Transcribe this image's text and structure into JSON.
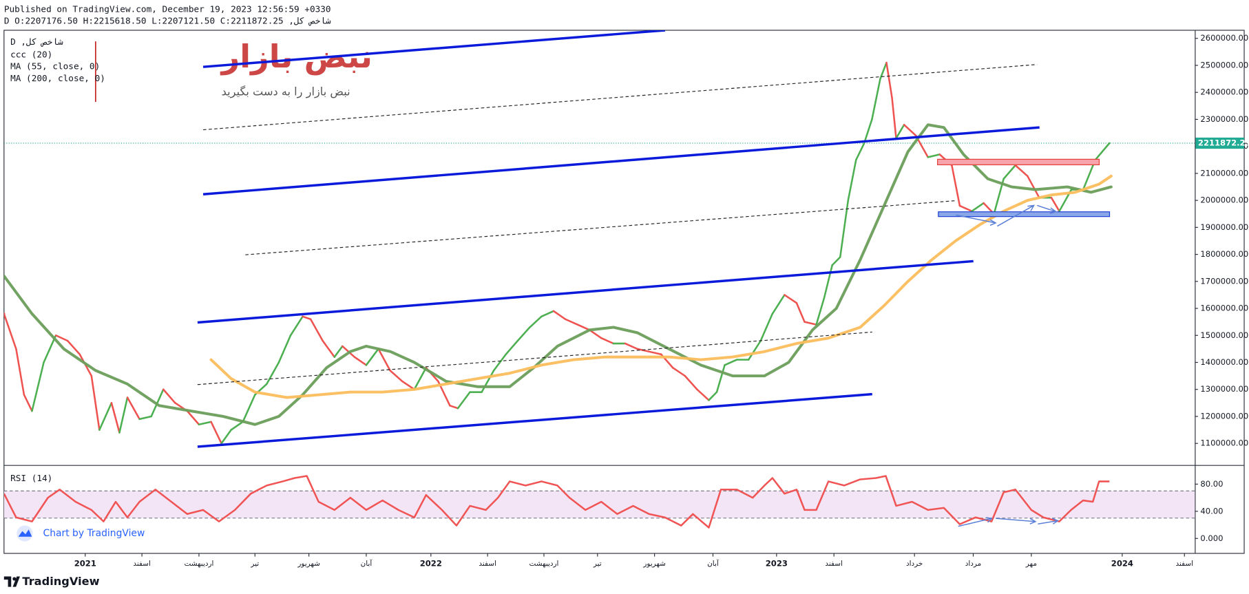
{
  "header": {
    "published": "Published on TradingView.com, December 19, 2023 12:56:59 +0330",
    "symbol_line": "شاخص کل, D O:2207176.50 H:2215618.50 L:2207121.50 C:2211872.25"
  },
  "watermark": {
    "logo": "نبض بازار",
    "tagline": "نبض بازار را به دست بگیرید"
  },
  "footer": {
    "attribution": "Chart by TradingView",
    "brand": "TradingView"
  },
  "chart_data": [
    {
      "type": "line",
      "legend": [
        "شاخص کل, D",
        "ccc (20)"
      ],
      "xlim": [
        2020.765,
        2024.21
      ],
      "ylim": [
        1020000,
        2630000
      ],
      "yticks": [
        {
          "value": 1100000,
          "label": "1100000.00"
        },
        {
          "value": 1200000,
          "label": "1200000.00"
        },
        {
          "value": 1300000,
          "label": "1300000.00"
        },
        {
          "value": 1400000,
          "label": "1400000.00"
        },
        {
          "value": 1500000,
          "label": "1500000.00"
        },
        {
          "value": 1600000,
          "label": "1600000.00"
        },
        {
          "value": 1700000,
          "label": "1700000.00"
        },
        {
          "value": 1800000,
          "label": "1800000.00"
        },
        {
          "value": 1900000,
          "label": "1900000.00"
        },
        {
          "value": 2000000,
          "label": "2000000.00"
        },
        {
          "value": 2100000,
          "label": "2100000.00"
        },
        {
          "value": 2200000,
          "label": "2200000.00"
        },
        {
          "value": 2300000,
          "label": "2300000.00"
        },
        {
          "value": 2400000,
          "label": "2400000.00"
        },
        {
          "value": 2500000,
          "label": "2500000.00"
        },
        {
          "value": 2600000,
          "label": "2600000.00"
        }
      ],
      "last_value": 2211872.25,
      "last_color": "#22ab94",
      "series": [
        {
          "color_up": "#4caf50",
          "color_down": "#ef5350",
          "x": [
            2020.765,
            2020.8,
            2020.823,
            2020.846,
            2020.88,
            2020.915,
            2020.949,
            2020.984,
            2021.018,
            2021.041,
            2021.076,
            2021.099,
            2021.122,
            2021.157,
            2021.191,
            2021.226,
            2021.26,
            2021.295,
            2021.329,
            2021.364,
            2021.394,
            2021.422,
            2021.456,
            2021.491,
            2021.525,
            2021.56,
            2021.594,
            2021.629,
            2021.652,
            2021.687,
            2021.721,
            2021.744,
            2021.779,
            2021.813,
            2021.848,
            2021.882,
            2021.917,
            2021.952,
            2021.986,
            2022.021,
            2022.055,
            2022.078,
            2022.113,
            2022.147,
            2022.182,
            2022.217,
            2022.251,
            2022.286,
            2022.32,
            2022.355,
            2022.389,
            2022.424,
            2022.459,
            2022.493,
            2022.528,
            2022.562,
            2022.597,
            2022.631,
            2022.666,
            2022.7,
            2022.735,
            2022.77,
            2022.804,
            2022.827,
            2022.85,
            2022.885,
            2022.919,
            2022.954,
            2022.988,
            2023.023,
            2023.058,
            2023.081,
            2023.115,
            2023.138,
            2023.161,
            2023.184,
            2023.207,
            2023.23,
            2023.253,
            2023.276,
            2023.3,
            2023.318,
            2023.334,
            2023.346,
            2023.369,
            2023.403,
            2023.438,
            2023.472,
            2023.507,
            2023.53,
            2023.565,
            2023.599,
            2023.629,
            2023.657,
            2023.691,
            2023.726,
            2023.76,
            2023.795,
            2023.818,
            2023.853,
            2023.887,
            2023.922,
            2023.963
          ],
          "values": [
            1580000,
            1450000,
            1280000,
            1220000,
            1400000,
            1500000,
            1480000,
            1430000,
            1350000,
            1150000,
            1250000,
            1140000,
            1270000,
            1190000,
            1200000,
            1300000,
            1250000,
            1220000,
            1170000,
            1180000,
            1100000,
            1150000,
            1180000,
            1280000,
            1320000,
            1400000,
            1500000,
            1570000,
            1560000,
            1480000,
            1420000,
            1460000,
            1420000,
            1390000,
            1450000,
            1370000,
            1330000,
            1300000,
            1380000,
            1330000,
            1240000,
            1230000,
            1290000,
            1290000,
            1370000,
            1430000,
            1480000,
            1530000,
            1570000,
            1590000,
            1560000,
            1540000,
            1520000,
            1490000,
            1470000,
            1470000,
            1450000,
            1440000,
            1430000,
            1380000,
            1350000,
            1300000,
            1260000,
            1290000,
            1390000,
            1410000,
            1410000,
            1480000,
            1580000,
            1650000,
            1620000,
            1550000,
            1540000,
            1640000,
            1760000,
            1790000,
            2000000,
            2150000,
            2210000,
            2300000,
            2450000,
            2510000,
            2380000,
            2230000,
            2280000,
            2240000,
            2160000,
            2170000,
            2130000,
            1980000,
            1960000,
            1990000,
            1950000,
            2080000,
            2130000,
            2090000,
            2010000,
            2010000,
            1960000,
            2040000,
            2040000,
            2150000,
            2211872.25
          ]
        },
        {
          "name": "MA (55, close, 0)",
          "color": "#6b9e5b",
          "x": [
            2020.765,
            2020.846,
            2020.938,
            2021.03,
            2021.122,
            2021.214,
            2021.306,
            2021.399,
            2021.491,
            2021.56,
            2021.629,
            2021.698,
            2021.767,
            2021.813,
            2021.883,
            2021.952,
            2022.044,
            2022.136,
            2022.228,
            2022.297,
            2022.366,
            2022.459,
            2022.528,
            2022.597,
            2022.689,
            2022.781,
            2022.873,
            2022.965,
            2023.035,
            2023.104,
            2023.173,
            2023.242,
            2023.311,
            2023.38,
            2023.438,
            2023.484,
            2023.541,
            2023.611,
            2023.68,
            2023.749,
            2023.841,
            2023.91,
            2023.968
          ],
          "values": [
            1720000,
            1580000,
            1450000,
            1370000,
            1320000,
            1240000,
            1220000,
            1200000,
            1170000,
            1200000,
            1280000,
            1380000,
            1440000,
            1460000,
            1440000,
            1400000,
            1330000,
            1310000,
            1310000,
            1380000,
            1460000,
            1520000,
            1530000,
            1510000,
            1450000,
            1390000,
            1350000,
            1350000,
            1400000,
            1520000,
            1600000,
            1780000,
            1980000,
            2180000,
            2280000,
            2270000,
            2170000,
            2080000,
            2050000,
            2040000,
            2050000,
            2030000,
            2050000
          ]
        },
        {
          "name": "MA (200, close, 0)",
          "color": "#fbbd5c",
          "x": [
            2021.364,
            2021.422,
            2021.491,
            2021.583,
            2021.675,
            2021.767,
            2021.86,
            2021.952,
            2022.044,
            2022.136,
            2022.228,
            2022.32,
            2022.413,
            2022.505,
            2022.597,
            2022.689,
            2022.781,
            2022.873,
            2022.965,
            2023.058,
            2023.15,
            2023.242,
            2023.311,
            2023.38,
            2023.449,
            2023.518,
            2023.588,
            2023.657,
            2023.726,
            2023.795,
            2023.864,
            2023.933,
            2023.968
          ],
          "values": [
            1410000,
            1340000,
            1290000,
            1270000,
            1280000,
            1290000,
            1290000,
            1300000,
            1320000,
            1340000,
            1360000,
            1390000,
            1410000,
            1420000,
            1420000,
            1420000,
            1410000,
            1420000,
            1440000,
            1470000,
            1490000,
            1530000,
            1610000,
            1700000,
            1780000,
            1850000,
            1910000,
            1960000,
            2000000,
            2020000,
            2030000,
            2060000,
            2090000
          ]
        }
      ]
    },
    {
      "type": "line",
      "title": "RSI (14)",
      "color": "#f05454",
      "band": [
        30,
        70
      ],
      "band_color": "#f3e5f5",
      "xlim": [
        2020.765,
        2024.21
      ],
      "ylim": [
        -22,
        107
      ],
      "yticks": [
        {
          "value": 0,
          "label": "0.000"
        },
        {
          "value": 40,
          "label": "40.00"
        },
        {
          "value": 80,
          "label": "80.00"
        }
      ],
      "xticks": [
        2021,
        {
          "value": 2021.164,
          "label": "اسفند"
        },
        {
          "value": 2021.329,
          "label": "اردیبهشت"
        },
        {
          "value": 2021.491,
          "label": "تیر"
        },
        {
          "value": 2021.647,
          "label": "شهریور"
        },
        {
          "value": 2021.813,
          "label": "آبان"
        },
        2022,
        {
          "value": 2022.164,
          "label": "اسفند"
        },
        {
          "value": 2022.327,
          "label": "اردیبهشت"
        },
        {
          "value": 2022.482,
          "label": "تیر"
        },
        {
          "value": 2022.647,
          "label": "شهریور"
        },
        {
          "value": 2022.816,
          "label": "آبان"
        },
        2023,
        {
          "value": 2023.166,
          "label": "اسفند"
        },
        {
          "value": 2023.399,
          "label": "خرداد"
        },
        {
          "value": 2023.569,
          "label": "مرداد"
        },
        {
          "value": 2023.737,
          "label": "مهر"
        },
        2024,
        {
          "value": 2024.18,
          "label": "اسفند"
        }
      ],
      "x": [
        2020.765,
        2020.8,
        2020.846,
        2020.892,
        2020.926,
        2020.972,
        2021.018,
        2021.053,
        2021.088,
        2021.122,
        2021.157,
        2021.203,
        2021.249,
        2021.295,
        2021.341,
        2021.387,
        2021.433,
        2021.479,
        2021.525,
        2021.571,
        2021.606,
        2021.641,
        2021.675,
        2021.721,
        2021.767,
        2021.813,
        2021.86,
        2021.906,
        2021.952,
        2021.986,
        2022.032,
        2022.074,
        2022.113,
        2022.159,
        2022.194,
        2022.228,
        2022.274,
        2022.32,
        2022.366,
        2022.401,
        2022.447,
        2022.493,
        2022.539,
        2022.585,
        2022.631,
        2022.677,
        2022.724,
        2022.758,
        2022.804,
        2022.839,
        2022.885,
        2022.931,
        2022.965,
        2022.988,
        2023.023,
        2023.058,
        2023.081,
        2023.115,
        2023.15,
        2023.196,
        2023.242,
        2023.288,
        2023.316,
        2023.346,
        2023.392,
        2023.438,
        2023.484,
        2023.53,
        2023.576,
        2023.622,
        2023.657,
        2023.691,
        2023.737,
        2023.772,
        2023.818,
        2023.852,
        2023.887,
        2023.915,
        2023.933,
        2023.963
      ],
      "values": [
        66,
        31,
        25,
        60,
        72,
        54,
        42,
        25,
        54,
        31,
        54,
        72,
        54,
        36,
        42,
        25,
        42,
        66,
        78,
        84,
        89,
        92,
        54,
        42,
        60,
        42,
        56,
        42,
        31,
        64,
        42,
        19,
        48,
        42,
        60,
        84,
        78,
        84,
        78,
        60,
        42,
        54,
        36,
        48,
        36,
        31,
        19,
        36,
        16,
        72,
        72,
        60,
        78,
        89,
        66,
        72,
        42,
        42,
        84,
        78,
        87,
        89,
        92,
        48,
        54,
        42,
        45,
        21,
        31,
        25,
        68,
        72,
        42,
        31,
        25,
        42,
        56,
        54,
        84,
        84
      ]
    }
  ]
}
